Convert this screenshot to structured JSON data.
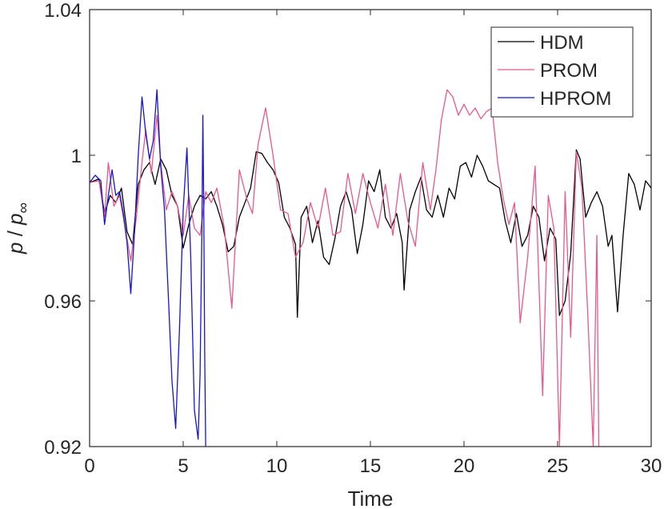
{
  "chart_data": {
    "type": "line",
    "xlabel": "Time",
    "ylabel_main": "p",
    "ylabel_sep": " / ",
    "ylabel_sub": "∞",
    "xlim": [
      0,
      30
    ],
    "ylim": [
      0.92,
      1.04
    ],
    "xticks": [
      0,
      5,
      10,
      15,
      20,
      25,
      30
    ],
    "xtick_labels": [
      "0",
      "5",
      "10",
      "15",
      "20",
      "25",
      "30"
    ],
    "yticks": [
      0.92,
      0.96,
      1.0,
      1.04
    ],
    "ytick_labels": [
      "0.92",
      "0.96",
      "1",
      "1.04"
    ],
    "grid": false,
    "legend_position": "top-right",
    "series": [
      {
        "name": "HDM",
        "color": "#000000",
        "x": [
          0,
          0.5,
          0.8,
          1.1,
          1.4,
          1.7,
          2.0,
          2.3,
          2.6,
          2.9,
          3.2,
          3.5,
          3.8,
          4.1,
          4.4,
          4.7,
          5.0,
          5.3,
          5.6,
          5.9,
          6.2,
          6.5,
          6.8,
          7.1,
          7.4,
          7.7,
          8.0,
          8.3,
          8.6,
          8.9,
          9.2,
          9.5,
          9.8,
          10.1,
          10.4,
          10.7,
          11.0,
          11.1,
          11.3,
          11.6,
          11.9,
          12.2,
          12.5,
          12.8,
          13.1,
          13.4,
          13.7,
          14.0,
          14.3,
          14.6,
          14.9,
          15.2,
          15.5,
          15.8,
          16.1,
          16.4,
          16.7,
          16.8,
          17.1,
          17.4,
          17.7,
          18.0,
          18.3,
          18.6,
          18.9,
          19.2,
          19.5,
          19.8,
          20.1,
          20.4,
          20.7,
          21.0,
          21.3,
          21.6,
          21.9,
          22.2,
          22.5,
          22.8,
          23.1,
          23.4,
          23.7,
          24.0,
          24.3,
          24.6,
          24.9,
          25.1,
          25.4,
          25.7,
          26.0,
          26.2,
          26.5,
          26.8,
          27.1,
          27.4,
          27.7,
          27.9,
          28.2,
          28.5,
          28.8,
          29.1,
          29.4,
          29.7,
          30.0
        ],
        "y": [
          0.9925,
          0.9935,
          0.984,
          0.989,
          0.987,
          0.991,
          0.979,
          0.9755,
          0.992,
          0.996,
          0.998,
          0.992,
          0.999,
          0.996,
          0.989,
          0.986,
          0.9745,
          0.981,
          0.986,
          0.989,
          0.988,
          0.99,
          0.986,
          0.981,
          0.9735,
          0.975,
          0.983,
          0.987,
          0.991,
          1.001,
          1.0005,
          0.998,
          0.996,
          0.9925,
          0.983,
          0.98,
          0.9755,
          0.9555,
          0.983,
          0.986,
          0.976,
          0.982,
          0.972,
          0.97,
          0.977,
          0.986,
          0.99,
          0.985,
          0.973,
          0.981,
          0.993,
          0.99,
          0.996,
          0.983,
          0.98,
          0.984,
          0.976,
          0.963,
          0.985,
          0.99,
          0.994,
          0.985,
          0.983,
          0.989,
          0.983,
          0.991,
          0.988,
          0.997,
          0.998,
          0.994,
          1.0,
          0.997,
          0.993,
          0.992,
          0.991,
          0.982,
          0.976,
          0.984,
          0.975,
          0.978,
          0.986,
          0.983,
          0.971,
          0.98,
          0.977,
          0.956,
          0.96,
          0.973,
          1.0015,
          0.999,
          0.983,
          0.987,
          0.99,
          0.986,
          0.975,
          0.978,
          0.957,
          0.978,
          0.995,
          0.992,
          0.985,
          0.993,
          0.991
        ]
      },
      {
        "name": "PROM",
        "color": "#e8588b",
        "x": [
          0,
          0.5,
          0.8,
          1.0,
          1.3,
          1.6,
          1.9,
          2.2,
          2.5,
          2.8,
          3.0,
          3.3,
          3.6,
          3.8,
          4.1,
          4.4,
          4.7,
          5.0,
          5.3,
          5.6,
          5.9,
          6.2,
          6.5,
          6.8,
          7.2,
          7.6,
          8.0,
          8.4,
          8.7,
          9.0,
          9.4,
          9.8,
          10.2,
          10.6,
          11.0,
          11.4,
          11.8,
          12.2,
          12.6,
          13.0,
          13.4,
          13.8,
          14.2,
          14.6,
          15.0,
          15.4,
          15.8,
          16.2,
          16.6,
          17.0,
          17.4,
          17.8,
          18.2,
          18.5,
          18.8,
          19.1,
          19.4,
          19.7,
          20.0,
          20.3,
          20.6,
          20.9,
          21.2,
          21.5,
          21.8,
          22.1,
          22.4,
          22.7,
          23.0,
          23.4,
          23.8,
          24.2,
          24.5,
          24.8,
          25.1,
          25.4,
          25.7,
          26.0,
          26.3,
          26.6,
          26.9,
          27.1,
          27.2
        ],
        "y": [
          0.9925,
          0.993,
          0.983,
          0.998,
          0.986,
          0.989,
          0.98,
          0.971,
          0.983,
          0.998,
          1.007,
          0.995,
          1.011,
          0.998,
          0.985,
          0.99,
          0.986,
          0.978,
          0.989,
          0.98,
          0.978,
          0.99,
          0.987,
          0.991,
          0.98,
          0.958,
          0.996,
          0.988,
          0.984,
          1.003,
          1.013,
          1.0,
          0.985,
          0.984,
          0.972,
          0.976,
          0.987,
          0.98,
          0.991,
          0.978,
          0.979,
          0.995,
          0.984,
          0.995,
          0.987,
          0.98,
          0.992,
          0.978,
          0.995,
          0.982,
          0.975,
          0.998,
          0.985,
          0.996,
          1.01,
          1.018,
          1.016,
          1.011,
          1.014,
          1.011,
          1.013,
          1.01,
          1.012,
          1.013,
          0.998,
          0.988,
          0.981,
          0.987,
          0.954,
          0.972,
          0.997,
          0.934,
          0.989,
          0.98,
          0.92,
          0.99,
          0.95,
          1.001,
          0.991,
          0.958,
          0.92,
          0.978,
          0.92
        ]
      },
      {
        "name": "HPROM",
        "color": "#1515d4",
        "x": [
          0,
          0.3,
          0.6,
          0.8,
          1.0,
          1.2,
          1.4,
          1.6,
          1.8,
          2.0,
          2.2,
          2.4,
          2.6,
          2.8,
          3.0,
          3.2,
          3.4,
          3.6,
          3.8,
          4.0,
          4.2,
          4.4,
          4.6,
          4.8,
          5.0,
          5.2,
          5.4,
          5.6,
          5.8,
          5.9,
          6.0,
          6.05,
          6.1,
          6.15,
          6.2
        ],
        "y": [
          0.9925,
          0.9945,
          0.993,
          0.981,
          0.989,
          0.996,
          0.989,
          0.99,
          0.984,
          0.976,
          0.962,
          0.979,
          1.0,
          1.016,
          1.006,
          0.999,
          1.004,
          1.018,
          0.997,
          0.985,
          0.962,
          0.938,
          0.925,
          0.952,
          0.985,
          1.002,
          0.972,
          0.93,
          0.922,
          0.94,
          0.98,
          1.011,
          0.985,
          0.945,
          0.92
        ]
      }
    ]
  }
}
